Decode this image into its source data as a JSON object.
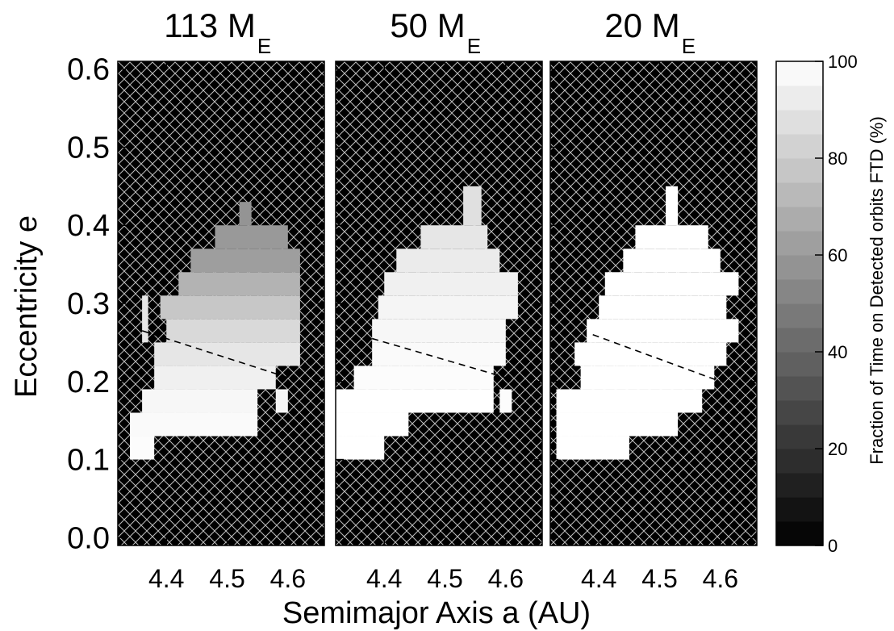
{
  "figure": {
    "xlabel": "Semimajor Axis a (AU)",
    "ylabel": "Eccentricity e",
    "colorbar_label": "Fraction of Time on Detected orbits FTD (%)"
  },
  "chart_data": {
    "type": "heatmap",
    "shared_xlabel": "Semimajor Axis a (AU)",
    "shared_ylabel": "Eccentricity e",
    "xlim": [
      4.32,
      4.66
    ],
    "ylim": [
      -0.01,
      0.61
    ],
    "xticks": [
      4.4,
      4.5,
      4.6
    ],
    "xtick_labels": [
      "4.4",
      "4.5",
      "4.6"
    ],
    "yticks": [
      0.0,
      0.1,
      0.2,
      0.3,
      0.4,
      0.5,
      0.6
    ],
    "ytick_labels": [
      "0.0",
      "0.1",
      "0.2",
      "0.3",
      "0.4",
      "0.5",
      "0.6"
    ],
    "colorbar": {
      "label": "Fraction of Time on Detected orbits FTD (%)",
      "range": [
        0,
        100
      ],
      "ticks": [
        0,
        20,
        40,
        60,
        80,
        100
      ],
      "tick_labels": [
        "0",
        "20",
        "40",
        "60",
        "80",
        "100"
      ],
      "levels": 20
    },
    "background": "black with white diagonal crosshatch (no data)",
    "panels": [
      {
        "title_main": "113 M",
        "title_sub": "E",
        "dashed_line": [
          [
            4.36,
            0.265
          ],
          [
            4.6,
            0.205
          ]
        ],
        "rows": [
          {
            "e": [
              0.1,
              0.13
            ],
            "a": [
              4.34,
              4.38
            ],
            "ftd": 99
          },
          {
            "e": [
              0.13,
              0.16
            ],
            "a": [
              4.34,
              4.55
            ],
            "ftd": 98
          },
          {
            "e": [
              0.16,
              0.19
            ],
            "a": [
              4.36,
              4.55
            ],
            "ftd": 97
          },
          {
            "e": [
              0.16,
              0.19
            ],
            "a": [
              4.58,
              4.6
            ],
            "ftd": 96
          },
          {
            "e": [
              0.19,
              0.22
            ],
            "a": [
              4.38,
              4.58
            ],
            "ftd": 94
          },
          {
            "e": [
              0.22,
              0.25
            ],
            "a": [
              4.38,
              4.62
            ],
            "ftd": 90
          },
          {
            "e": [
              0.25,
              0.28
            ],
            "a": [
              4.4,
              4.62
            ],
            "ftd": 85
          },
          {
            "e": [
              0.28,
              0.31
            ],
            "a": [
              4.39,
              4.62
            ],
            "ftd": 78
          },
          {
            "e": [
              0.31,
              0.34
            ],
            "a": [
              4.42,
              4.62
            ],
            "ftd": 70
          },
          {
            "e": [
              0.34,
              0.37
            ],
            "a": [
              4.44,
              4.62
            ],
            "ftd": 62
          },
          {
            "e": [
              0.37,
              0.4
            ],
            "a": [
              4.48,
              4.6
            ],
            "ftd": 60
          },
          {
            "e": [
              0.4,
              0.43
            ],
            "a": [
              4.52,
              4.54
            ],
            "ftd": 58
          },
          {
            "e": [
              0.25,
              0.31
            ],
            "a": [
              4.36,
              4.37
            ],
            "ftd": 90
          }
        ]
      },
      {
        "title_main": "50 M",
        "title_sub": "E",
        "dashed_line": [
          [
            4.38,
            0.255
          ],
          [
            4.6,
            0.205
          ]
        ],
        "rows": [
          {
            "e": [
              0.1,
              0.13
            ],
            "a": [
              4.32,
              4.4
            ],
            "ftd": 100
          },
          {
            "e": [
              0.13,
              0.16
            ],
            "a": [
              4.32,
              4.44
            ],
            "ftd": 100
          },
          {
            "e": [
              0.16,
              0.19
            ],
            "a": [
              4.32,
              4.58
            ],
            "ftd": 100
          },
          {
            "e": [
              0.16,
              0.19
            ],
            "a": [
              4.59,
              4.61
            ],
            "ftd": 99
          },
          {
            "e": [
              0.19,
              0.22
            ],
            "a": [
              4.35,
              4.58
            ],
            "ftd": 99
          },
          {
            "e": [
              0.22,
              0.25
            ],
            "a": [
              4.38,
              4.6
            ],
            "ftd": 98
          },
          {
            "e": [
              0.25,
              0.28
            ],
            "a": [
              4.38,
              4.6
            ],
            "ftd": 97
          },
          {
            "e": [
              0.28,
              0.31
            ],
            "a": [
              4.39,
              4.62
            ],
            "ftd": 96
          },
          {
            "e": [
              0.31,
              0.34
            ],
            "a": [
              4.4,
              4.62
            ],
            "ftd": 94
          },
          {
            "e": [
              0.34,
              0.37
            ],
            "a": [
              4.42,
              4.59
            ],
            "ftd": 92
          },
          {
            "e": [
              0.37,
              0.4
            ],
            "a": [
              4.46,
              4.57
            ],
            "ftd": 90
          },
          {
            "e": [
              0.4,
              0.45
            ],
            "a": [
              4.53,
              4.56
            ],
            "ftd": 88
          }
        ]
      },
      {
        "title_main": "20 M",
        "title_sub": "E",
        "dashed_line": [
          [
            4.39,
            0.26
          ],
          [
            4.6,
            0.2
          ]
        ],
        "rows": [
          {
            "e": [
              0.1,
              0.13
            ],
            "a": [
              4.33,
              4.45
            ],
            "ftd": 100
          },
          {
            "e": [
              0.13,
              0.16
            ],
            "a": [
              4.33,
              4.53
            ],
            "ftd": 100
          },
          {
            "e": [
              0.16,
              0.19
            ],
            "a": [
              4.33,
              4.57
            ],
            "ftd": 100
          },
          {
            "e": [
              0.19,
              0.22
            ],
            "a": [
              4.37,
              4.59
            ],
            "ftd": 100
          },
          {
            "e": [
              0.22,
              0.25
            ],
            "a": [
              4.36,
              4.61
            ],
            "ftd": 100
          },
          {
            "e": [
              0.25,
              0.28
            ],
            "a": [
              4.38,
              4.63
            ],
            "ftd": 100
          },
          {
            "e": [
              0.28,
              0.31
            ],
            "a": [
              4.4,
              4.61
            ],
            "ftd": 100
          },
          {
            "e": [
              0.31,
              0.34
            ],
            "a": [
              4.41,
              4.63
            ],
            "ftd": 100
          },
          {
            "e": [
              0.34,
              0.37
            ],
            "a": [
              4.44,
              4.6
            ],
            "ftd": 100
          },
          {
            "e": [
              0.37,
              0.4
            ],
            "a": [
              4.46,
              4.58
            ],
            "ftd": 100
          },
          {
            "e": [
              0.4,
              0.45
            ],
            "a": [
              4.51,
              4.53
            ],
            "ftd": 100
          }
        ]
      }
    ]
  }
}
